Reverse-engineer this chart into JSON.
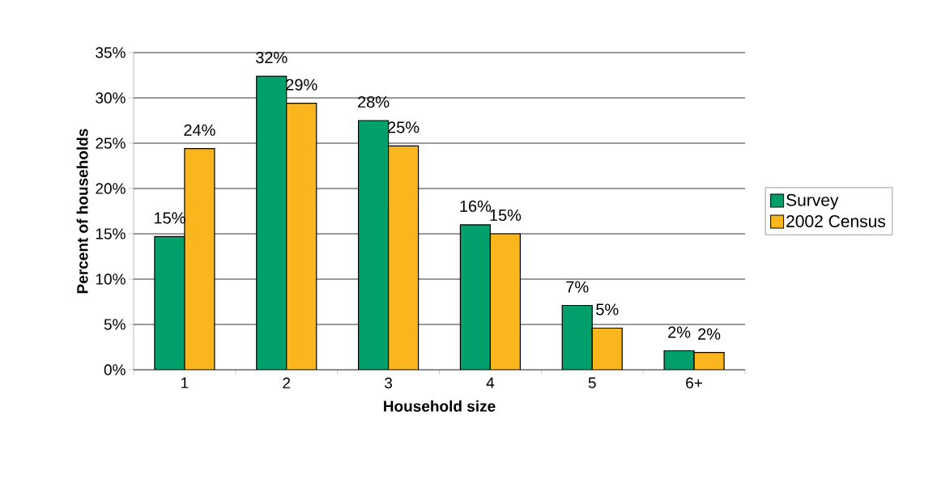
{
  "chart_data": {
    "type": "bar",
    "xlabel": "Household size",
    "ylabel": "Percent of households",
    "categories": [
      "1",
      "2",
      "3",
      "4",
      "5",
      "6+"
    ],
    "series": [
      {
        "name": "Survey",
        "color": "#009f6b",
        "values": [
          14.7,
          32.4,
          27.5,
          16.0,
          7.1,
          2.1
        ],
        "value_labels": [
          "15%",
          "32%",
          "28%",
          "16%",
          "7%",
          "2%"
        ]
      },
      {
        "name": "2002 Census",
        "color": "#fbb61d",
        "values": [
          24.4,
          29.4,
          24.7,
          15.0,
          4.6,
          1.9
        ],
        "value_labels": [
          "24%",
          "29%",
          "25%",
          "15%",
          "5%",
          "2%"
        ]
      }
    ],
    "ylim": [
      0,
      35
    ],
    "yticks": [
      {
        "value": 0,
        "label": "0%"
      },
      {
        "value": 5,
        "label": "5%"
      },
      {
        "value": 10,
        "label": "10%"
      },
      {
        "value": 15,
        "label": "15%"
      },
      {
        "value": 20,
        "label": "20%"
      },
      {
        "value": 25,
        "label": "25%"
      },
      {
        "value": 30,
        "label": "30%"
      },
      {
        "value": 35,
        "label": "35%"
      }
    ],
    "grid": "y",
    "legend": "right"
  }
}
